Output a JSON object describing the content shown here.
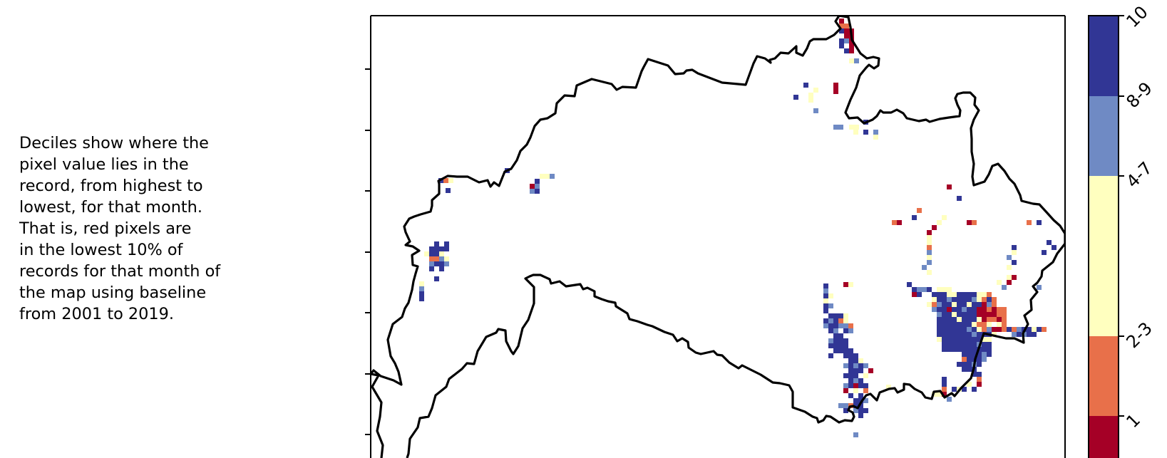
{
  "description": "Deciles show where the\npixel value lies in the\nrecord, from highest to\nlowest, for that month.\nThat is, red pixels are\nin the lowest 10% of\nrecords for that month of\nthe map using baseline\nfrom 2001 to 2019.",
  "colorbar": {
    "classes": [
      {
        "label": "10",
        "color": "#313695"
      },
      {
        "label": "8-9",
        "color": "#6f8ac4"
      },
      {
        "label": "4-7",
        "color": "#ffffbf"
      },
      {
        "label": "2-3",
        "color": "#e8704a"
      },
      {
        "label": "1",
        "color": "#a50026"
      }
    ]
  },
  "map": {
    "boundary_color": "#000000",
    "pixel_classes": {
      "c10": "10",
      "c8": "8-9",
      "c4": "4-7",
      "c2": "2-3",
      "c1": "1"
    }
  }
}
